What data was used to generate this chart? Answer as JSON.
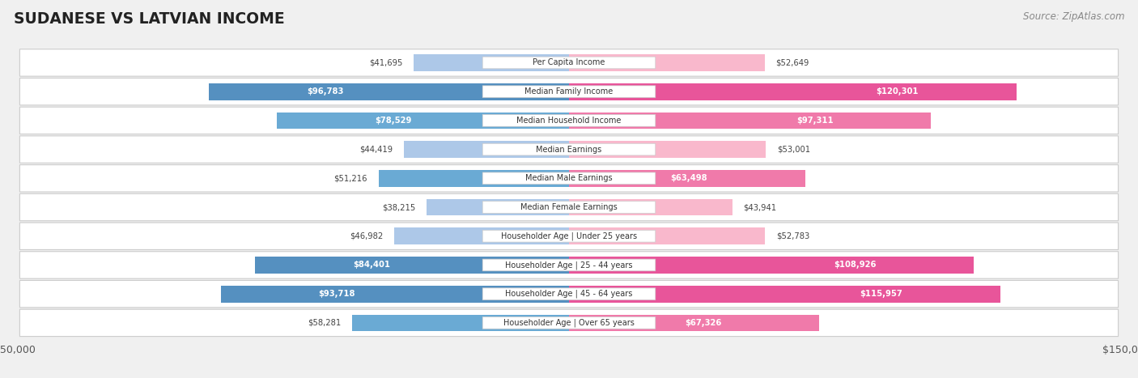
{
  "title": "SUDANESE VS LATVIAN INCOME",
  "source": "Source: ZipAtlas.com",
  "categories": [
    "Per Capita Income",
    "Median Family Income",
    "Median Household Income",
    "Median Earnings",
    "Median Male Earnings",
    "Median Female Earnings",
    "Householder Age | Under 25 years",
    "Householder Age | 25 - 44 years",
    "Householder Age | 45 - 64 years",
    "Householder Age | Over 65 years"
  ],
  "sudanese": [
    41695,
    96783,
    78529,
    44419,
    51216,
    38215,
    46982,
    84401,
    93718,
    58281
  ],
  "latvian": [
    52649,
    120301,
    97311,
    53001,
    63498,
    43941,
    52783,
    108926,
    115957,
    67326
  ],
  "max_val": 150000,
  "blue_light": "#adc8e8",
  "blue_medium": "#6aaad4",
  "blue_dark": "#5590c0",
  "pink_light": "#f9b8cc",
  "pink_medium": "#f07aaa",
  "pink_dark": "#e8559a",
  "bg_color": "#f0f0f0",
  "row_bg": "#ffffff",
  "label_bg": "#ffffff",
  "legend_blue": "#7bafd4",
  "legend_pink": "#f48fb1",
  "inside_label_threshold": 60000
}
